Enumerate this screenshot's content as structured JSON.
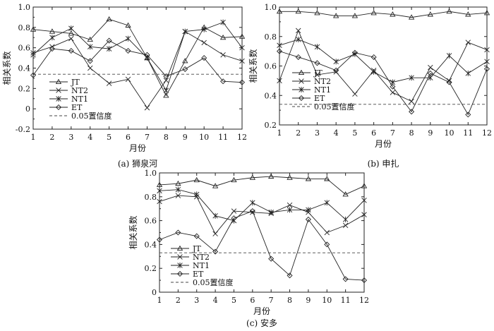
{
  "figure": {
    "chart_data": [
      {
        "type": "line",
        "caption": "(a) 狮泉河",
        "xlabel": "月份",
        "ylabel": "相关系数",
        "x": [
          1,
          2,
          3,
          4,
          5,
          6,
          7,
          8,
          9,
          10,
          11,
          12
        ],
        "xticks": [
          "1",
          "2",
          "3",
          "4",
          "5",
          "6",
          "7",
          "8",
          "9",
          "10",
          "11",
          "12"
        ],
        "ylim": [
          -0.2,
          1.0
        ],
        "yticks": [
          "-0.2",
          "0",
          "0.2",
          "0.4",
          "0.6",
          "0.8",
          "1.0"
        ],
        "ytick_values": [
          -0.2,
          0,
          0.2,
          0.4,
          0.6,
          0.8,
          1.0
        ],
        "legend_position": "bottom-left",
        "series": [
          {
            "name": "JT",
            "marker": "triangle",
            "values": [
              0.78,
              0.76,
              0.74,
              0.68,
              0.88,
              0.82,
              0.5,
              0.13,
              0.47,
              0.8,
              0.7,
              0.71
            ]
          },
          {
            "name": "NT2",
            "marker": "x",
            "values": [
              0.55,
              0.61,
              0.69,
              0.4,
              0.25,
              0.29,
              0.01,
              0.28,
              0.76,
              0.65,
              0.53,
              0.47
            ]
          },
          {
            "name": "NT1",
            "marker": "star",
            "values": [
              0.53,
              0.7,
              0.79,
              0.61,
              0.59,
              0.69,
              0.5,
              0.18,
              0.76,
              0.78,
              0.85,
              0.6
            ]
          },
          {
            "name": "ET",
            "marker": "diamond",
            "values": [
              0.33,
              0.59,
              0.57,
              0.47,
              0.67,
              0.57,
              0.53,
              0.32,
              0.39,
              0.5,
              0.27,
              0.26
            ]
          }
        ],
        "reference_line": {
          "name": "0.05置信度",
          "value": 0.34
        }
      },
      {
        "type": "line",
        "caption": "(b) 申扎",
        "xlabel": "月份",
        "ylabel": "相关系数",
        "x": [
          1,
          2,
          3,
          4,
          5,
          6,
          7,
          8,
          9,
          10,
          11,
          12
        ],
        "xticks": [
          "1",
          "2",
          "3",
          "4",
          "5",
          "6",
          "7",
          "8",
          "9",
          "10",
          "11",
          "12"
        ],
        "ylim": [
          0.2,
          1.0
        ],
        "yticks": [
          "0.2",
          "0.4",
          "0.6",
          "0.8",
          "1.0"
        ],
        "ytick_values": [
          0.2,
          0.4,
          0.6,
          0.8,
          1.0
        ],
        "legend_position": "bottom-left",
        "series": [
          {
            "name": "JT",
            "marker": "triangle",
            "values": [
              0.97,
              0.97,
              0.96,
              0.94,
              0.94,
              0.96,
              0.95,
              0.93,
              0.95,
              0.97,
              0.95,
              0.96
            ]
          },
          {
            "name": "NT2",
            "marker": "x",
            "values": [
              0.5,
              0.84,
              0.54,
              0.56,
              0.41,
              0.57,
              0.42,
              0.36,
              0.59,
              0.5,
              0.76,
              0.71
            ]
          },
          {
            "name": "NT1",
            "marker": "star",
            "values": [
              0.74,
              0.78,
              0.73,
              0.63,
              0.68,
              0.56,
              0.49,
              0.52,
              0.52,
              0.67,
              0.55,
              0.63
            ]
          },
          {
            "name": "ET",
            "marker": "diamond",
            "values": [
              0.7,
              0.66,
              0.62,
              0.57,
              0.69,
              0.66,
              0.46,
              0.29,
              0.55,
              0.49,
              0.27,
              0.58
            ]
          }
        ],
        "reference_line": {
          "name": "0.05置信度",
          "value": 0.34
        }
      },
      {
        "type": "line",
        "caption": "(c) 安多",
        "xlabel": "月份",
        "ylabel": "相关系数",
        "x": [
          1,
          2,
          3,
          4,
          5,
          6,
          7,
          8,
          9,
          10,
          11,
          12
        ],
        "xticks": [
          "1",
          "2",
          "3",
          "4",
          "5",
          "6",
          "7",
          "8",
          "9",
          "10",
          "11",
          "12"
        ],
        "ylim": [
          0,
          1.0
        ],
        "yticks": [
          "0",
          "0.2",
          "0.4",
          "0.6",
          "0.8",
          "1.0"
        ],
        "ytick_values": [
          0,
          0.2,
          0.4,
          0.6,
          0.8,
          1.0
        ],
        "legend_position": "bottom-left",
        "series": [
          {
            "name": "JT",
            "marker": "triangle",
            "values": [
              0.9,
              0.91,
              0.94,
              0.89,
              0.94,
              0.96,
              0.97,
              0.96,
              0.95,
              0.95,
              0.82,
              0.89
            ]
          },
          {
            "name": "NT2",
            "marker": "x",
            "values": [
              0.76,
              0.81,
              0.8,
              0.49,
              0.68,
              0.67,
              0.66,
              0.73,
              0.67,
              0.5,
              0.56,
              0.65
            ]
          },
          {
            "name": "NT1",
            "marker": "star",
            "values": [
              0.85,
              0.86,
              0.82,
              0.64,
              0.6,
              0.75,
              0.67,
              0.69,
              0.69,
              0.75,
              0.61,
              0.77
            ]
          },
          {
            "name": "ET",
            "marker": "diamond",
            "values": [
              0.44,
              0.5,
              0.47,
              0.34,
              0.62,
              0.68,
              0.28,
              0.14,
              0.61,
              0.4,
              0.11,
              0.1
            ]
          }
        ],
        "reference_line": {
          "name": "0.05置信度",
          "value": 0.33
        }
      }
    ]
  }
}
